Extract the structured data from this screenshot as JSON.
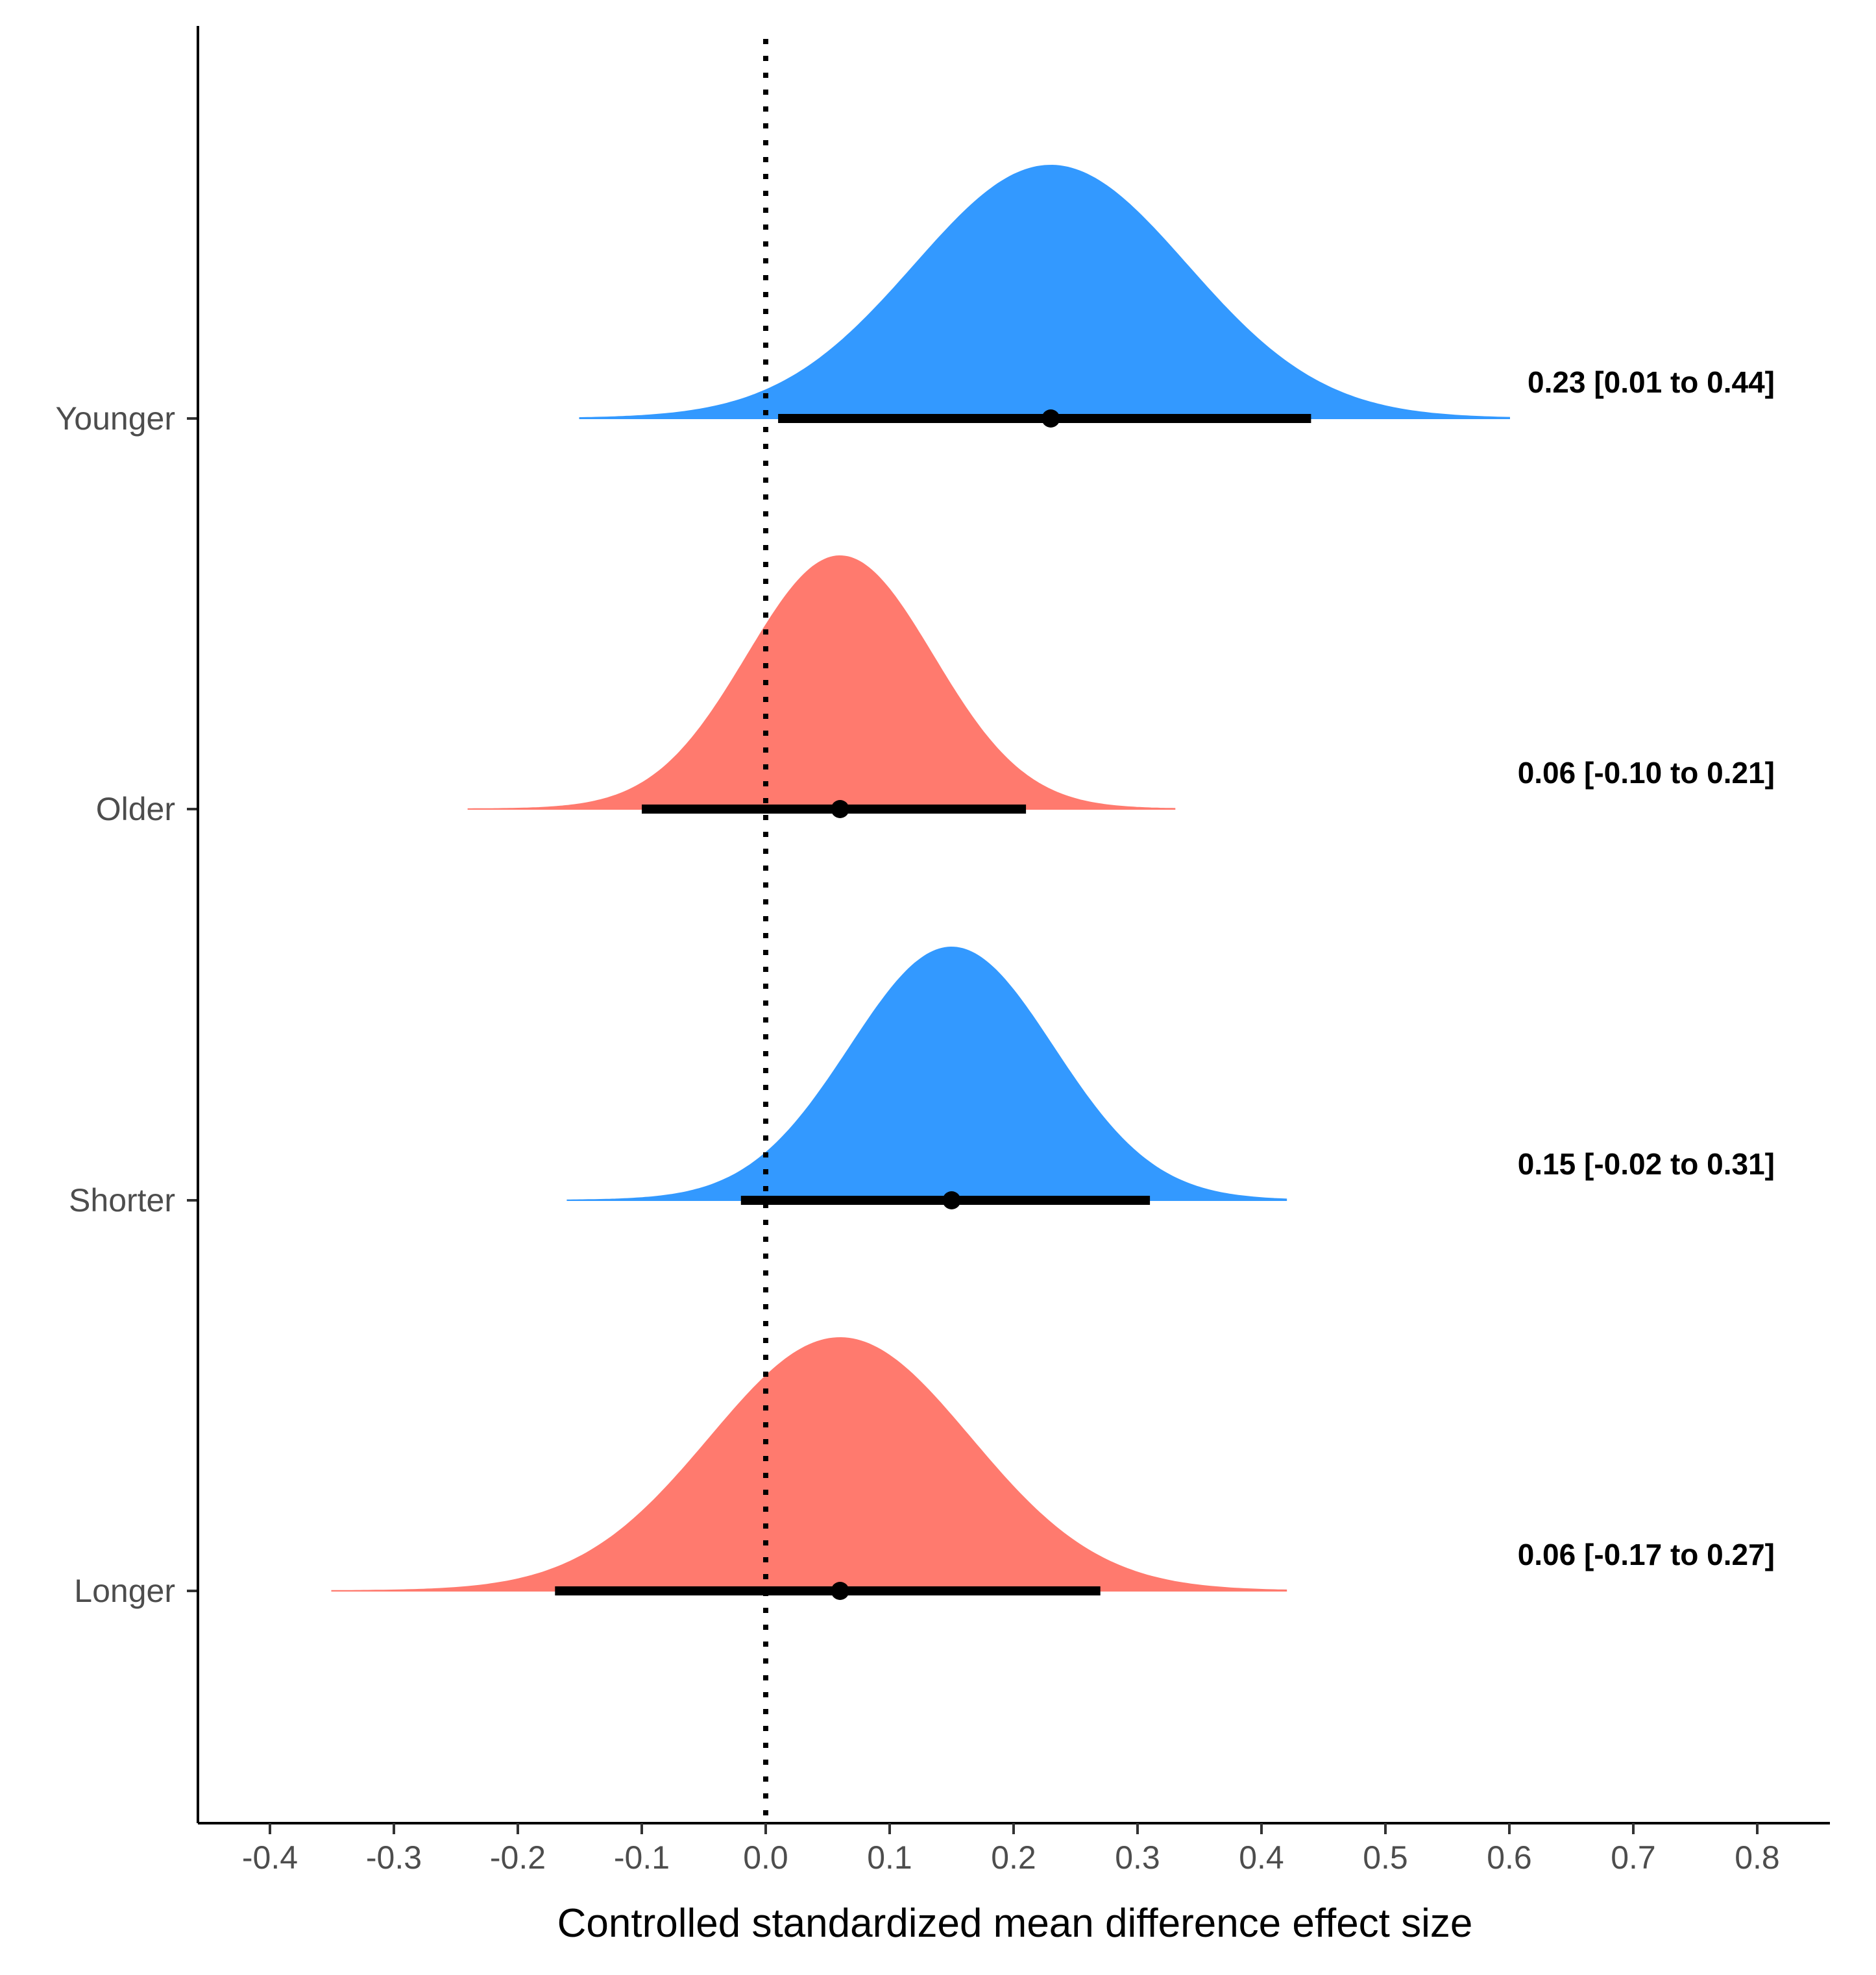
{
  "chart_data": {
    "type": "half-eye density (posterior distributions with interval)",
    "xlabel": "Controlled standardized mean difference effect size",
    "ylabel": "",
    "xlim": [
      -0.46,
      0.86
    ],
    "x_ticks": [
      -0.4,
      -0.3,
      -0.2,
      -0.1,
      0.0,
      0.1,
      0.2,
      0.3,
      0.4,
      0.5,
      0.6,
      0.7,
      0.8
    ],
    "x_tick_labels": [
      "-0.4",
      "-0.3",
      "-0.2",
      "-0.1",
      "0.0",
      "0.1",
      "0.2",
      "0.3",
      "0.4",
      "0.5",
      "0.6",
      "0.7",
      "0.8"
    ],
    "reference_line": {
      "x": 0.0,
      "style": "dotted"
    },
    "categories": [
      "Younger",
      "Older",
      "Shorter",
      "Longer"
    ],
    "series": [
      {
        "name": "Younger",
        "estimate": 0.23,
        "ci_low": 0.01,
        "ci_high": 0.44,
        "sd": 0.11,
        "dist_min": -0.15,
        "dist_max": 0.6,
        "color": "#3399FF",
        "annotation": "0.23 [0.01 to 0.44]"
      },
      {
        "name": "Older",
        "estimate": 0.06,
        "ci_low": -0.1,
        "ci_high": 0.21,
        "sd": 0.075,
        "dist_min": -0.24,
        "dist_max": 0.33,
        "color": "#FF7A6E",
        "annotation": "0.06 [-0.10 to 0.21]"
      },
      {
        "name": "Shorter",
        "estimate": 0.15,
        "ci_low": -0.02,
        "ci_high": 0.31,
        "sd": 0.082,
        "dist_min": -0.16,
        "dist_max": 0.42,
        "color": "#3399FF",
        "annotation": "0.15 [-0.02 to 0.31]"
      },
      {
        "name": "Longer",
        "estimate": 0.06,
        "ci_low": -0.17,
        "ci_high": 0.27,
        "sd": 0.105,
        "dist_min": -0.35,
        "dist_max": 0.42,
        "color": "#FF7A6E",
        "annotation": "0.06 [-0.17 to 0.27]"
      }
    ]
  }
}
